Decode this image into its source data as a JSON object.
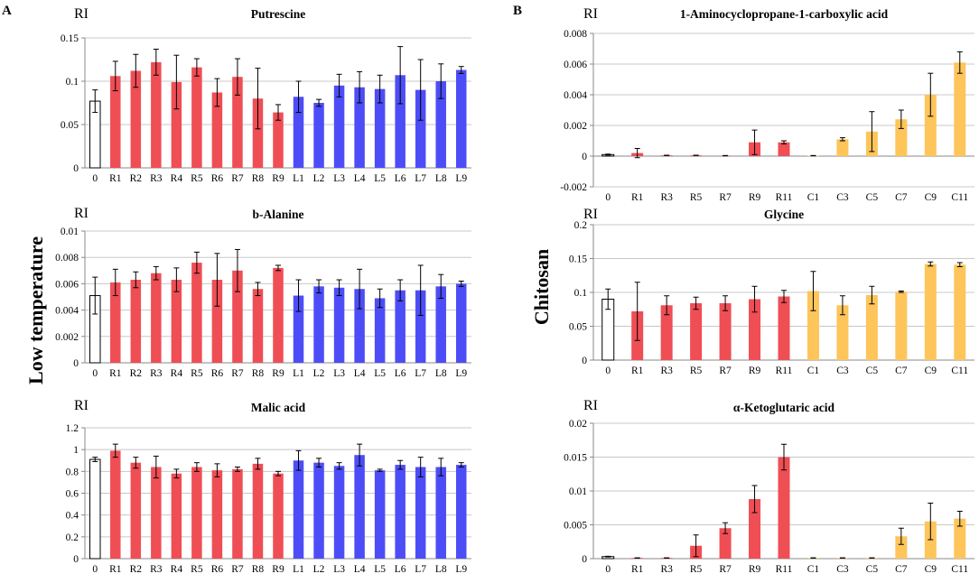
{
  "panels": [
    {
      "letter": "A",
      "side_label": "Low temperature"
    },
    {
      "letter": "B",
      "side_label": "Chitosan"
    }
  ],
  "colors": {
    "control": "#ffffff",
    "R": "#ef4e55",
    "L": "#4d4df7",
    "C": "#fdc55a",
    "outline": "#000000",
    "axis": "#888888",
    "grid": "#c8c8c8"
  },
  "chart_data": [
    {
      "type": "bar",
      "title": "Putrescine",
      "ylabel": "RI",
      "ylim": [
        0,
        0.15
      ],
      "yticks": [
        "0",
        "0.05",
        "0.1",
        "0.15"
      ],
      "ytick_values": [
        0,
        0.05,
        0.1,
        0.15
      ],
      "categories": [
        "0",
        "R1",
        "R2",
        "R3",
        "R4",
        "R5",
        "R6",
        "R7",
        "R8",
        "R9",
        "L1",
        "L2",
        "L3",
        "L4",
        "L5",
        "L6",
        "L7",
        "L8",
        "L9"
      ],
      "groups": [
        "control",
        "R",
        "R",
        "R",
        "R",
        "R",
        "R",
        "R",
        "R",
        "R",
        "L",
        "L",
        "L",
        "L",
        "L",
        "L",
        "L",
        "L",
        "L"
      ],
      "values": [
        0.077,
        0.106,
        0.112,
        0.122,
        0.099,
        0.116,
        0.087,
        0.105,
        0.08,
        0.064,
        0.082,
        0.075,
        0.095,
        0.093,
        0.091,
        0.107,
        0.09,
        0.1,
        0.113
      ],
      "errors": [
        0.013,
        0.017,
        0.019,
        0.015,
        0.031,
        0.01,
        0.016,
        0.021,
        0.035,
        0.009,
        0.018,
        0.004,
        0.013,
        0.018,
        0.016,
        0.033,
        0.035,
        0.02,
        0.004
      ],
      "grid": true
    },
    {
      "type": "bar",
      "title": "b-Alanine",
      "ylabel": "RI",
      "ylim": [
        0,
        0.01
      ],
      "yticks": [
        "0",
        "0.002",
        "0.004",
        "0.006",
        "0.008",
        "0.01"
      ],
      "ytick_values": [
        0,
        0.002,
        0.004,
        0.006,
        0.008,
        0.01
      ],
      "categories": [
        "0",
        "R1",
        "R2",
        "R3",
        "R4",
        "R5",
        "R6",
        "R7",
        "R8",
        "R9",
        "L1",
        "L2",
        "L3",
        "L4",
        "L5",
        "L6",
        "L7",
        "L8",
        "L9"
      ],
      "groups": [
        "control",
        "R",
        "R",
        "R",
        "R",
        "R",
        "R",
        "R",
        "R",
        "R",
        "L",
        "L",
        "L",
        "L",
        "L",
        "L",
        "L",
        "L",
        "L"
      ],
      "values": [
        0.0051,
        0.0061,
        0.0063,
        0.0068,
        0.0063,
        0.0076,
        0.0063,
        0.007,
        0.0056,
        0.0072,
        0.0051,
        0.0058,
        0.0057,
        0.0056,
        0.0049,
        0.0055,
        0.0055,
        0.0058,
        0.006
      ],
      "errors": [
        0.0014,
        0.001,
        0.0006,
        0.0005,
        0.0009,
        0.0008,
        0.002,
        0.0016,
        0.0005,
        0.0002,
        0.0012,
        0.0005,
        0.0006,
        0.0015,
        0.0007,
        0.0008,
        0.0019,
        0.0009,
        0.0002
      ],
      "grid": true
    },
    {
      "type": "bar",
      "title": "Malic acid",
      "ylabel": "RI",
      "ylim": [
        0,
        1.2
      ],
      "yticks": [
        "0",
        "0.2",
        "0.4",
        "0.6",
        "0.8",
        "1",
        "1.2"
      ],
      "ytick_values": [
        0,
        0.2,
        0.4,
        0.6,
        0.8,
        1.0,
        1.2
      ],
      "categories": [
        "0",
        "R1",
        "R2",
        "R3",
        "R4",
        "R5",
        "R6",
        "R7",
        "R8",
        "R9",
        "L1",
        "L2",
        "L3",
        "L4",
        "L5",
        "L6",
        "L7",
        "L8",
        "L9"
      ],
      "groups": [
        "control",
        "R",
        "R",
        "R",
        "R",
        "R",
        "R",
        "R",
        "R",
        "R",
        "L",
        "L",
        "L",
        "L",
        "L",
        "L",
        "L",
        "L",
        "L"
      ],
      "values": [
        0.91,
        0.99,
        0.88,
        0.84,
        0.78,
        0.84,
        0.81,
        0.82,
        0.87,
        0.78,
        0.9,
        0.88,
        0.85,
        0.95,
        0.81,
        0.86,
        0.84,
        0.84,
        0.86
      ],
      "errors": [
        0.02,
        0.06,
        0.05,
        0.1,
        0.04,
        0.04,
        0.06,
        0.02,
        0.05,
        0.02,
        0.09,
        0.04,
        0.03,
        0.1,
        0.01,
        0.04,
        0.09,
        0.08,
        0.02
      ],
      "grid": true
    },
    {
      "type": "bar",
      "title": "1-Aminocyclopropane-1-carboxylic acid",
      "ylabel": "RI",
      "ylim": [
        -0.002,
        0.008
      ],
      "yticks": [
        "-0.002",
        "0",
        "0.002",
        "0.004",
        "0.006",
        "0.008"
      ],
      "ytick_values": [
        -0.002,
        0,
        0.002,
        0.004,
        0.006,
        0.008
      ],
      "categories": [
        "0",
        "R1",
        "R3",
        "R5",
        "R7",
        "R9",
        "R11",
        "C1",
        "C3",
        "C5",
        "C7",
        "C9",
        "C11"
      ],
      "groups": [
        "control",
        "R",
        "R",
        "R",
        "R",
        "R",
        "R",
        "C",
        "C",
        "C",
        "C",
        "C",
        "C"
      ],
      "values": [
        0.0001,
        0.0002,
        5e-05,
        5e-05,
        3e-05,
        0.0009,
        0.0009,
        3e-05,
        0.0011,
        0.0016,
        0.0024,
        0.004,
        0.0061
      ],
      "errors": [
        3e-05,
        0.0003,
        1e-05,
        1e-05,
        1e-05,
        0.0008,
        0.0001,
        1e-05,
        0.0001,
        0.0013,
        0.0006,
        0.0014,
        0.0007
      ],
      "grid": true
    },
    {
      "type": "bar",
      "title": "Glycine",
      "ylabel": "RI",
      "ylim": [
        0,
        0.2
      ],
      "yticks": [
        "0",
        "0.05",
        "0.1",
        "0.15",
        "0.2"
      ],
      "ytick_values": [
        0,
        0.05,
        0.1,
        0.15,
        0.2
      ],
      "categories": [
        "0",
        "R1",
        "R3",
        "R5",
        "R7",
        "R9",
        "R11",
        "C1",
        "C3",
        "C5",
        "C7",
        "C9",
        "C11"
      ],
      "groups": [
        "control",
        "R",
        "R",
        "R",
        "R",
        "R",
        "R",
        "C",
        "C",
        "C",
        "C",
        "C",
        "C"
      ],
      "values": [
        0.09,
        0.072,
        0.081,
        0.084,
        0.084,
        0.09,
        0.094,
        0.102,
        0.081,
        0.096,
        0.101,
        0.142,
        0.141
      ],
      "errors": [
        0.015,
        0.043,
        0.014,
        0.009,
        0.011,
        0.019,
        0.009,
        0.029,
        0.014,
        0.013,
        0.001,
        0.003,
        0.003
      ],
      "grid": true
    },
    {
      "type": "bar",
      "title": "α-Ketoglutaric acid",
      "ylabel": "RI",
      "ylim": [
        0,
        0.02
      ],
      "yticks": [
        "0",
        "0.005",
        "0.01",
        "0.015",
        "0.02"
      ],
      "ytick_values": [
        0,
        0.005,
        0.01,
        0.015,
        0.02
      ],
      "categories": [
        "0",
        "R1",
        "R3",
        "R5",
        "R7",
        "R9",
        "R11",
        "C1",
        "C3",
        "C5",
        "C7",
        "C9",
        "C11"
      ],
      "groups": [
        "control",
        "R",
        "R",
        "R",
        "R",
        "R",
        "R",
        "C",
        "C",
        "C",
        "C",
        "C",
        "C"
      ],
      "values": [
        0.0003,
        0.0001,
        0.0001,
        0.0019,
        0.0045,
        0.0088,
        0.015,
        0.0001,
        0.0001,
        0.0001,
        0.0033,
        0.0055,
        0.0059
      ],
      "errors": [
        5e-05,
        2e-05,
        2e-05,
        0.0016,
        0.0008,
        0.002,
        0.0019,
        2e-05,
        2e-05,
        2e-05,
        0.0012,
        0.0027,
        0.0011
      ],
      "grid": true
    }
  ]
}
